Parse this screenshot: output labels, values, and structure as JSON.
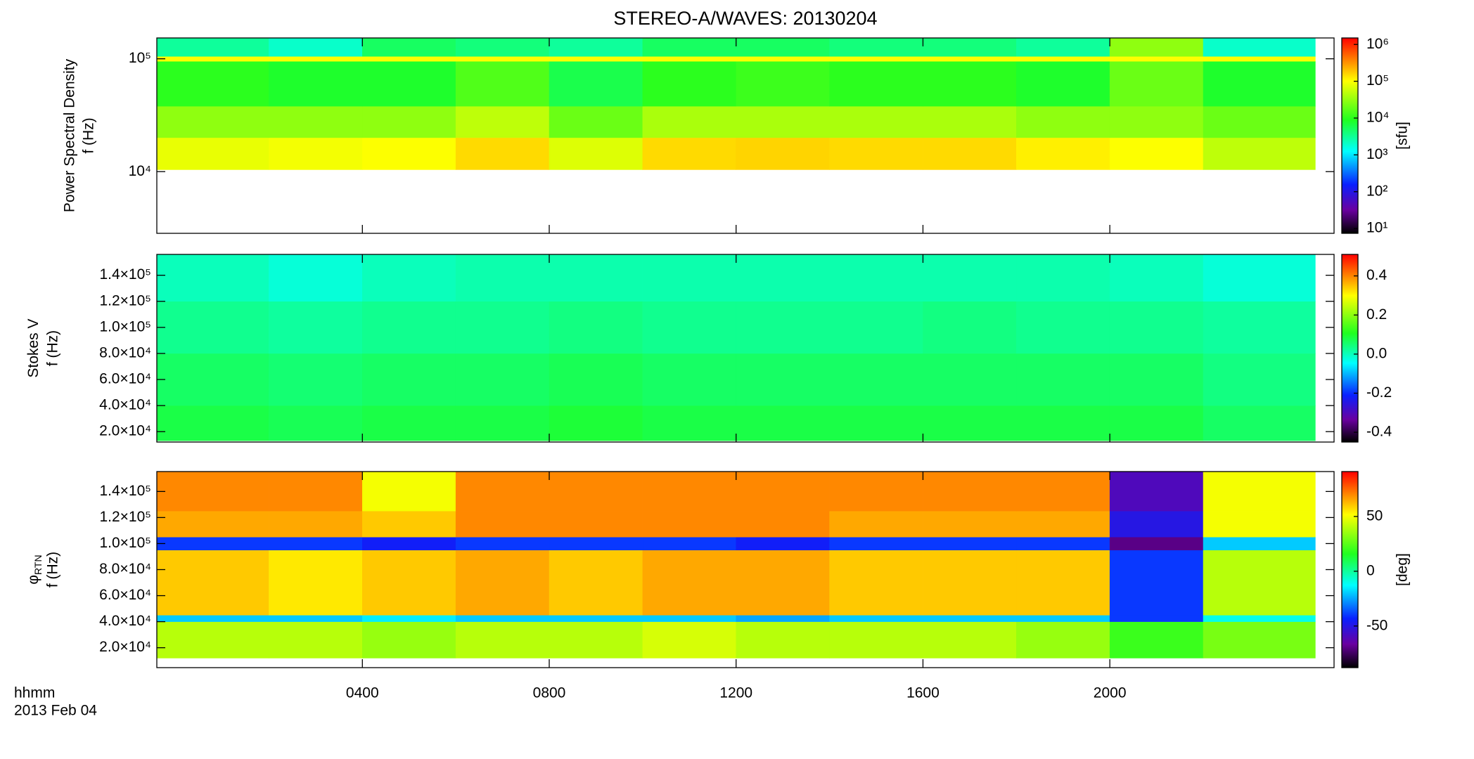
{
  "chart_data": [
    {
      "type": "heatmap",
      "title": "STEREO-A/WAVES: 20130204",
      "ylabel": "Power Spectral Density",
      "ylabel_unit": "f (Hz)",
      "ylog": true,
      "ylim": [
        2840,
        153000
      ],
      "yticks": [
        {
          "value": 10000,
          "label": "10⁴"
        },
        {
          "value": 100000,
          "label": "10⁵"
        }
      ],
      "colormap": "rainbow",
      "clog": true,
      "clim": [
        7.4,
        1500000
      ],
      "clabel": "[sfu]",
      "cticks": [
        {
          "value": 10,
          "label": "10¹"
        },
        {
          "value": 100,
          "label": "10²"
        },
        {
          "value": 1000,
          "label": "10³"
        },
        {
          "value": 10000,
          "label": "10⁴"
        },
        {
          "value": 100000,
          "label": "10⁵"
        },
        {
          "value": 1000000,
          "label": "10⁶"
        }
      ],
      "xbins": [
        -0.4,
        2,
        4,
        6,
        8,
        10,
        12,
        14,
        16,
        18,
        20,
        22,
        24.4
      ],
      "ybins": [
        10400,
        20000,
        38000,
        95000,
        105000,
        153000
      ],
      "z": [
        [
          80000,
          90000,
          100000,
          150000,
          70000,
          150000,
          160000,
          150000,
          150000,
          120000,
          100000,
          50000
        ],
        [
          30000,
          30000,
          30000,
          50000,
          20000,
          40000,
          40000,
          40000,
          40000,
          30000,
          30000,
          20000
        ],
        [
          10000,
          8000,
          8000,
          15000,
          6000,
          10000,
          12000,
          10000,
          10000,
          8000,
          20000,
          8000
        ],
        [
          100000,
          100000,
          100000,
          100000,
          100000,
          100000,
          100000,
          100000,
          100000,
          100000,
          100000,
          100000
        ],
        [
          3000,
          2000,
          5000,
          4000,
          3000,
          5000,
          5000,
          4000,
          4000,
          3000,
          30000,
          2000
        ]
      ]
    },
    {
      "type": "heatmap",
      "ylabel": "Stokes V",
      "ylabel_unit": "f (Hz)",
      "ylog": false,
      "ylim": [
        12000,
        156000
      ],
      "yticks": [
        {
          "value": 20000,
          "label": "2.0×10⁴"
        },
        {
          "value": 40000,
          "label": "4.0×10⁴"
        },
        {
          "value": 60000,
          "label": "6.0×10⁴"
        },
        {
          "value": 80000,
          "label": "8.0×10⁴"
        },
        {
          "value": 100000,
          "label": "1.0×10⁵"
        },
        {
          "value": 120000,
          "label": "1.2×10⁵"
        },
        {
          "value": 140000,
          "label": "1.4×10⁵"
        }
      ],
      "colormap": "rainbow",
      "clog": false,
      "clim": [
        -0.45,
        0.51
      ],
      "cticks": [
        -0.4,
        -0.2,
        {
          "value": 0,
          "label": "0.0"
        },
        0.2,
        0.4
      ],
      "xbins": [
        -0.4,
        2,
        4,
        6,
        8,
        10,
        12,
        14,
        16,
        18,
        20,
        22,
        24.4
      ],
      "ybins": [
        13000,
        40000,
        80000,
        120000,
        156000
      ],
      "z": [
        [
          0.08,
          0.07,
          0.08,
          0.08,
          0.09,
          0.08,
          0.08,
          0.08,
          0.08,
          0.08,
          0.08,
          0.06
        ],
        [
          0.06,
          0.05,
          0.06,
          0.06,
          0.07,
          0.06,
          0.06,
          0.06,
          0.06,
          0.06,
          0.06,
          0.04
        ],
        [
          0.03,
          0.02,
          0.03,
          0.03,
          0.04,
          0.03,
          0.03,
          0.03,
          0.04,
          0.03,
          0.03,
          0.02
        ],
        [
          0.0,
          -0.02,
          0.0,
          0.01,
          0.01,
          0.01,
          0.01,
          0.01,
          0.01,
          0.01,
          0.0,
          -0.02
        ]
      ]
    },
    {
      "type": "heatmap",
      "ylabel": "φ",
      "ylabel_subscript": "RTN",
      "ylabel_unit": "f (Hz)",
      "ylog": false,
      "ylim": [
        4700,
        155300
      ],
      "yticks": [
        {
          "value": 20000,
          "label": "2.0×10⁴"
        },
        {
          "value": 40000,
          "label": "4.0×10⁴"
        },
        {
          "value": 60000,
          "label": "6.0×10⁴"
        },
        {
          "value": 80000,
          "label": "8.0×10⁴"
        },
        {
          "value": 100000,
          "label": "1.0×10⁵"
        },
        {
          "value": 120000,
          "label": "1.2×10⁵"
        },
        {
          "value": 140000,
          "label": "1.4×10⁵"
        }
      ],
      "colormap": "rainbow",
      "clog": false,
      "clim": [
        -88,
        91
      ],
      "clabel": "[deg]",
      "cticks": [
        -50,
        0,
        50
      ],
      "xlim": [
        -0.4,
        24.8
      ],
      "xticks": [
        {
          "value": 4,
          "label": "0400"
        },
        {
          "value": 8,
          "label": "0800"
        },
        {
          "value": 12,
          "label": "1200"
        },
        {
          "value": 16,
          "label": "1600"
        },
        {
          "value": 20,
          "label": "2000"
        }
      ],
      "xlabel": "hhmm",
      "date": "2013 Feb 04",
      "xbins": [
        -0.4,
        2,
        4,
        6,
        8,
        10,
        12,
        14,
        16,
        18,
        20,
        22,
        24.4
      ],
      "ybins": [
        12000,
        40000,
        45000,
        95000,
        105000,
        125000,
        155300
      ],
      "z": [
        [
          40,
          40,
          35,
          40,
          40,
          45,
          40,
          40,
          40,
          35,
          20,
          30
        ],
        [
          -20,
          -20,
          -15,
          -20,
          -20,
          -20,
          -25,
          -20,
          -20,
          -20,
          -40,
          -10
        ],
        [
          60,
          55,
          60,
          65,
          60,
          65,
          65,
          60,
          60,
          60,
          -40,
          40
        ],
        [
          -40,
          -40,
          -45,
          -40,
          -40,
          -40,
          -45,
          -40,
          -40,
          -40,
          -70,
          -20
        ],
        [
          65,
          65,
          60,
          70,
          70,
          70,
          70,
          65,
          65,
          65,
          -50,
          50
        ],
        [
          70,
          70,
          50,
          70,
          70,
          70,
          70,
          70,
          70,
          70,
          -60,
          50
        ]
      ]
    }
  ]
}
